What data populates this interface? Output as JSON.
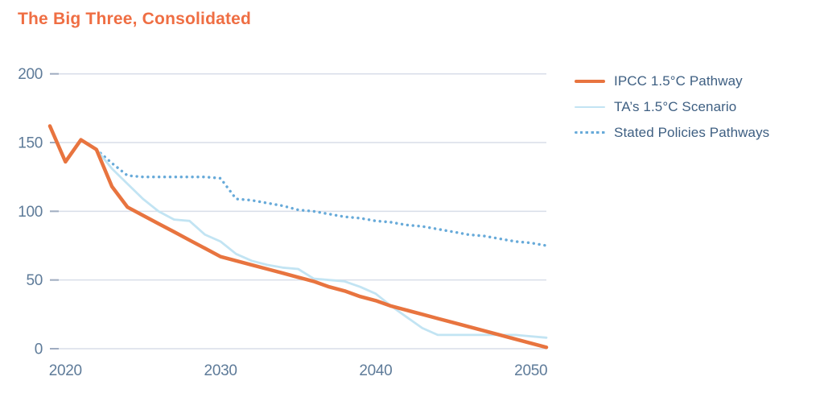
{
  "title": "The Big Three, Consolidated",
  "colors": {
    "background": "#FFFFFF",
    "title": "#EF6E43",
    "grid": "#D8DEE9",
    "tick_accent": "#9FACC0",
    "axis_label": "#5E7B99",
    "legend_label": "#3E5F82"
  },
  "chart_data": {
    "type": "line",
    "title": "The Big Three, Consolidated",
    "xlabel": "",
    "ylabel": "",
    "xlim": [
      2019,
      2051
    ],
    "ylim": [
      0,
      200
    ],
    "x_ticks": [
      2020,
      2030,
      2040,
      2050
    ],
    "y_ticks": [
      0,
      50,
      100,
      150,
      200
    ],
    "grid": "horizontal-only",
    "legend_position": "right",
    "series": [
      {
        "name": "IPCC 1.5°C Pathway",
        "color": "#E8743F",
        "line_style": "solid",
        "line_width": 4.5,
        "x": [
          2019,
          2020,
          2021,
          2022,
          2023,
          2024,
          2025,
          2026,
          2027,
          2028,
          2029,
          2030,
          2031,
          2032,
          2033,
          2034,
          2035,
          2036,
          2037,
          2038,
          2039,
          2040,
          2041,
          2042,
          2043,
          2044,
          2045,
          2046,
          2047,
          2048,
          2049,
          2050,
          2051
        ],
        "values": [
          162,
          136,
          152,
          145,
          118,
          103,
          97,
          91,
          85,
          79,
          73,
          67,
          64,
          61,
          58,
          55,
          52,
          49,
          45,
          42,
          38,
          35,
          31,
          28,
          25,
          22,
          19,
          16,
          13,
          10,
          7,
          4,
          1
        ]
      },
      {
        "name": "TA’s 1.5°C Scenario",
        "color": "#C2E4F3",
        "line_style": "solid",
        "line_width": 2.8,
        "x": [
          2022,
          2023,
          2024,
          2025,
          2026,
          2027,
          2028,
          2029,
          2030,
          2031,
          2032,
          2033,
          2034,
          2035,
          2036,
          2037,
          2038,
          2039,
          2040,
          2041,
          2042,
          2043,
          2044,
          2045,
          2046,
          2047,
          2048,
          2049,
          2050,
          2051
        ],
        "values": [
          145,
          131,
          120,
          109,
          100,
          94,
          93,
          83,
          78,
          69,
          64,
          61,
          59,
          58,
          51,
          50,
          49,
          45,
          40,
          31,
          23,
          15,
          10,
          10,
          10,
          10,
          10,
          10,
          9,
          8
        ]
      },
      {
        "name": "Stated Policies Pathways",
        "color": "#67AAD9",
        "line_style": "dotted",
        "line_width": 3.4,
        "x": [
          2022,
          2023,
          2024,
          2025,
          2026,
          2027,
          2028,
          2029,
          2030,
          2031,
          2032,
          2033,
          2034,
          2035,
          2036,
          2037,
          2038,
          2039,
          2040,
          2041,
          2042,
          2043,
          2044,
          2045,
          2046,
          2047,
          2048,
          2049,
          2050,
          2051
        ],
        "values": [
          145,
          135,
          126,
          125,
          125,
          125,
          125,
          125,
          124,
          109,
          108,
          106,
          104,
          101,
          100,
          98,
          96,
          95,
          93,
          92,
          90,
          89,
          87,
          85,
          83,
          82,
          80,
          78,
          77,
          75
        ]
      }
    ]
  }
}
